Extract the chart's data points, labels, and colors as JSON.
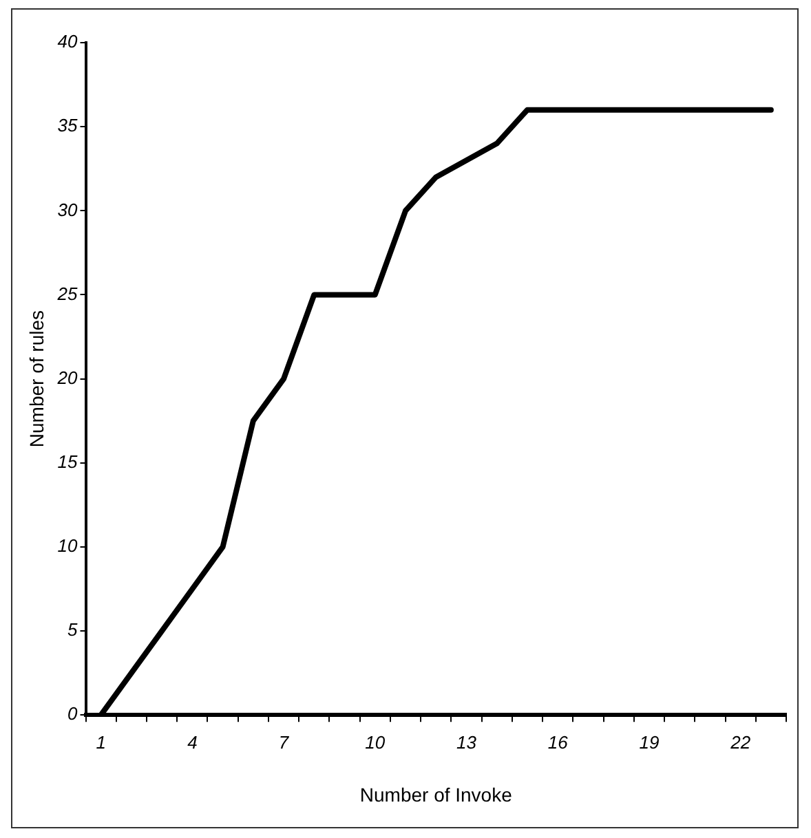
{
  "chart_data": {
    "type": "line",
    "xlabel": "Number of Invoke",
    "ylabel": "Number of rules",
    "categories": [
      "1",
      null,
      null,
      "4",
      null,
      null,
      "7",
      null,
      null,
      "10",
      null,
      null,
      "13",
      null,
      null,
      "16",
      null,
      null,
      "19",
      null,
      null,
      "22",
      null
    ],
    "series": [
      {
        "color": "#000000",
        "values": [
          0,
          2.5,
          5,
          7.5,
          10,
          17.5,
          20,
          25,
          25,
          25,
          30,
          32,
          33,
          34,
          36,
          36,
          36,
          36,
          36,
          36,
          36,
          36,
          36
        ]
      }
    ],
    "ylim": [
      0,
      40
    ],
    "yticks": [
      0,
      5,
      10,
      15,
      20,
      25,
      30,
      35,
      40
    ],
    "grid": false,
    "legend": false,
    "marker": "none",
    "line_style": "solid"
  }
}
